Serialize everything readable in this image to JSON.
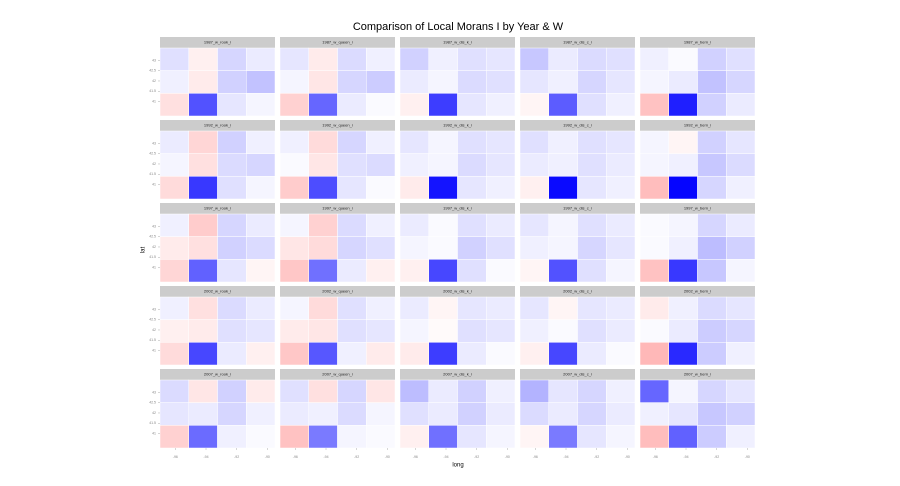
{
  "chart_data": {
    "type": "map-facet",
    "title": "Comparison of Local Morans I by Year & W",
    "xlabel": "long",
    "ylabel": "lat",
    "xlim": [
      -97,
      -89.5
    ],
    "ylim": [
      40.3,
      43.6
    ],
    "xticks": [
      -96,
      -94,
      -92,
      -90
    ],
    "yticks": [
      41,
      41.5,
      42,
      42.5,
      43
    ],
    "color_low": "#ff0000",
    "color_mid": "#ffffff",
    "color_high": "#0000ff",
    "clim": [
      -5,
      5
    ],
    "panels": [
      {
        "label": "1987_w_rook_i",
        "values": [
          0.6,
          -0.3,
          0.8,
          0.4,
          0.3,
          -0.4,
          0.9,
          1.2,
          -0.6,
          3.4,
          0.5,
          0.2
        ]
      },
      {
        "label": "1987_w_queen_i",
        "values": [
          0.5,
          -0.4,
          0.7,
          0.3,
          0.2,
          -0.5,
          0.8,
          1.0,
          -0.9,
          3.0,
          0.4,
          0.1
        ]
      },
      {
        "label": "1987_w_dis_k_i",
        "values": [
          0.9,
          0.3,
          0.6,
          0.5,
          0.4,
          0.2,
          0.7,
          0.6,
          -0.3,
          3.8,
          0.5,
          0.3
        ]
      },
      {
        "label": "1987_w_dis_c_i",
        "values": [
          1.1,
          0.4,
          0.7,
          0.6,
          0.5,
          0.3,
          0.8,
          0.5,
          -0.2,
          3.2,
          0.6,
          0.3
        ]
      },
      {
        "label": "1987_w_bern_i",
        "values": [
          0.3,
          0.1,
          0.9,
          0.6,
          0.2,
          0.4,
          1.2,
          0.8,
          -1.2,
          4.4,
          0.9,
          0.4
        ]
      },
      {
        "label": "1992_w_rook_i",
        "values": [
          0.4,
          -0.8,
          0.9,
          0.3,
          0.2,
          -0.6,
          0.7,
          0.8,
          -0.7,
          3.9,
          0.6,
          0.2
        ]
      },
      {
        "label": "1992_w_queen_i",
        "values": [
          0.3,
          -0.7,
          0.8,
          0.3,
          0.1,
          -0.5,
          0.6,
          0.7,
          -1.0,
          3.5,
          0.5,
          0.1
        ]
      },
      {
        "label": "1992_w_dis_k_i",
        "values": [
          0.5,
          0.2,
          0.6,
          0.5,
          0.3,
          0.2,
          0.7,
          0.5,
          -0.4,
          4.6,
          0.5,
          0.3
        ]
      },
      {
        "label": "1992_w_dis_c_i",
        "values": [
          0.6,
          0.3,
          0.6,
          0.5,
          0.4,
          0.3,
          0.6,
          0.4,
          -0.3,
          4.8,
          0.5,
          0.3
        ]
      },
      {
        "label": "1992_w_bern_i",
        "values": [
          0.2,
          -0.2,
          0.9,
          0.5,
          0.2,
          0.3,
          1.1,
          0.7,
          -1.3,
          4.9,
          0.8,
          0.3
        ]
      },
      {
        "label": "1997_w_rook_i",
        "values": [
          0.3,
          -1.0,
          0.8,
          0.4,
          -0.4,
          -0.6,
          0.9,
          0.7,
          -0.8,
          3.1,
          0.5,
          -0.2
        ]
      },
      {
        "label": "1997_w_queen_i",
        "values": [
          0.2,
          -0.9,
          0.7,
          0.3,
          -0.5,
          -0.7,
          0.8,
          0.6,
          -1.1,
          2.8,
          0.4,
          -0.3
        ]
      },
      {
        "label": "1997_w_dis_k_i",
        "values": [
          0.4,
          0.1,
          0.6,
          0.4,
          0.2,
          0.1,
          0.9,
          0.6,
          -0.3,
          3.6,
          0.6,
          0.1
        ]
      },
      {
        "label": "1997_w_dis_c_i",
        "values": [
          0.5,
          0.2,
          0.6,
          0.4,
          0.3,
          0.2,
          0.8,
          0.5,
          -0.2,
          3.4,
          0.6,
          0.2
        ]
      },
      {
        "label": "1997_w_bern_i",
        "values": [
          0.1,
          0.2,
          0.8,
          0.4,
          0.1,
          0.3,
          1.3,
          0.9,
          -1.2,
          3.9,
          1.1,
          0.2
        ]
      },
      {
        "label": "2002_w_rook_i",
        "values": [
          0.3,
          -0.6,
          0.7,
          0.4,
          -0.3,
          -0.4,
          0.6,
          0.5,
          -0.7,
          3.6,
          0.4,
          -0.3
        ]
      },
      {
        "label": "2002_w_queen_i",
        "values": [
          0.2,
          -0.7,
          0.6,
          0.3,
          -0.4,
          -0.5,
          0.6,
          0.5,
          -1.1,
          3.3,
          0.3,
          -0.4
        ]
      },
      {
        "label": "2002_w_dis_k_i",
        "values": [
          0.4,
          -0.2,
          0.5,
          0.4,
          0.2,
          -0.1,
          0.6,
          0.5,
          -0.4,
          3.8,
          0.4,
          0.1
        ]
      },
      {
        "label": "2002_w_dis_c_i",
        "values": [
          0.5,
          -0.2,
          0.5,
          0.4,
          0.3,
          0.1,
          0.6,
          0.4,
          -0.3,
          3.6,
          0.4,
          0.1
        ]
      },
      {
        "label": "2002_w_bern_i",
        "values": [
          -0.4,
          0.3,
          0.7,
          0.5,
          0.1,
          0.4,
          1.0,
          0.8,
          -1.4,
          4.2,
          1.0,
          0.3
        ]
      },
      {
        "label": "2007_w_rook_i",
        "values": [
          0.7,
          -0.5,
          0.9,
          -0.4,
          0.5,
          0.4,
          0.8,
          0.3,
          -0.9,
          2.9,
          0.3,
          0.1
        ]
      },
      {
        "label": "2007_w_queen_i",
        "values": [
          0.6,
          -0.6,
          0.8,
          -0.5,
          0.4,
          0.3,
          0.7,
          0.2,
          -1.2,
          2.6,
          0.2,
          0.1
        ]
      },
      {
        "label": "2007_w_dis_k_i",
        "values": [
          1.3,
          0.4,
          0.9,
          0.3,
          0.6,
          0.4,
          0.9,
          0.4,
          -0.3,
          2.8,
          0.5,
          0.2
        ]
      },
      {
        "label": "2007_w_dis_c_i",
        "values": [
          1.5,
          0.5,
          0.8,
          0.3,
          0.7,
          0.4,
          0.8,
          0.4,
          -0.2,
          2.6,
          0.5,
          0.2
        ]
      },
      {
        "label": "2007_w_bern_i",
        "values": [
          3.0,
          0.2,
          0.8,
          0.5,
          0.3,
          0.5,
          1.1,
          0.9,
          -1.3,
          3.1,
          1.0,
          0.3
        ]
      }
    ]
  }
}
